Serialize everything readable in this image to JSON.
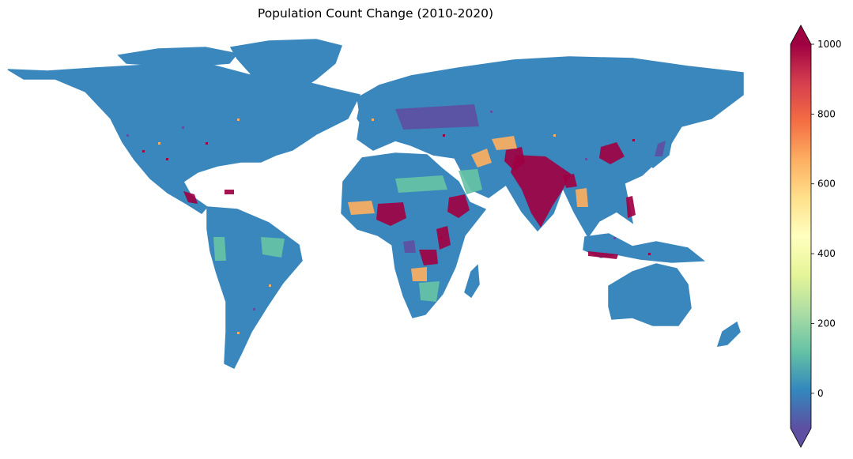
{
  "title": "Population Count Change (2010-2020)",
  "colorbar": {
    "min": -100,
    "max": 1000,
    "extend": "both",
    "ticks": [
      {
        "value": 1000,
        "label": "1000"
      },
      {
        "value": 800,
        "label": "800"
      },
      {
        "value": 600,
        "label": "600"
      },
      {
        "value": 400,
        "label": "400"
      },
      {
        "value": 200,
        "label": "200"
      },
      {
        "value": 0,
        "label": "0"
      }
    ],
    "colors": [
      "#5e4fa2",
      "#3288bd",
      "#66c2a5",
      "#abdda4",
      "#e6f598",
      "#ffffbf",
      "#fee08b",
      "#fdae61",
      "#f46d43",
      "#d53e4f",
      "#9e0142"
    ]
  },
  "map": {
    "land_color": "#3a87bd",
    "hotspot_colors": {
      "high": "#9e0142",
      "mid": "#fdae61",
      "low": "#66c2a5",
      "neg": "#5e4fa2"
    }
  }
}
